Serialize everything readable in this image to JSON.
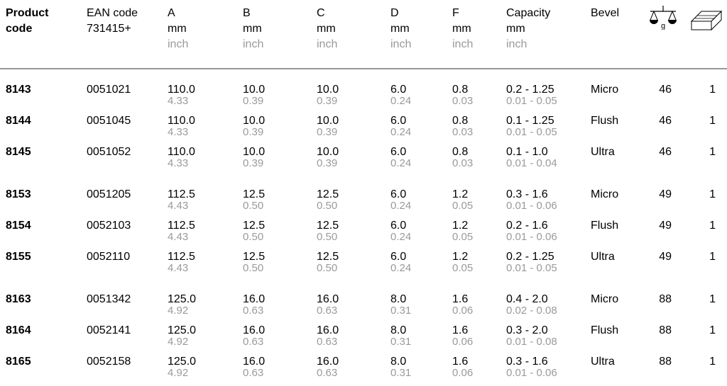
{
  "headers": {
    "product_code": [
      "Product",
      "code"
    ],
    "ean": [
      "EAN code",
      "731415+"
    ],
    "a": [
      "A",
      "mm",
      "inch"
    ],
    "b": [
      "B",
      "mm",
      "inch"
    ],
    "c": [
      "C",
      "mm",
      "inch"
    ],
    "d": [
      "D",
      "mm",
      "inch"
    ],
    "f": [
      "F",
      "mm",
      "inch"
    ],
    "capacity": [
      "Capacity",
      "mm",
      "inch"
    ],
    "bevel": "Bevel",
    "weight_icon_label": "g",
    "weight_icon": "balance-scale-icon",
    "box_icon": "package-box-icon"
  },
  "rows": [
    {
      "code": "8143",
      "ean": "0051021",
      "a": "110.0",
      "a_in": "4.33",
      "b": "10.0",
      "b_in": "0.39",
      "c": "10.0",
      "c_in": "0.39",
      "d": "6.0",
      "d_in": "0.24",
      "f": "0.8",
      "f_in": "0.03",
      "cap": "0.2 - 1.25",
      "cap_in": "0.01 - 0.05",
      "bevel": "Micro",
      "weight": "46",
      "qty": "1"
    },
    {
      "code": "8144",
      "ean": "0051045",
      "a": "110.0",
      "a_in": "4.33",
      "b": "10.0",
      "b_in": "0.39",
      "c": "10.0",
      "c_in": "0.39",
      "d": "6.0",
      "d_in": "0.24",
      "f": "0.8",
      "f_in": "0.03",
      "cap": "0.1 - 1.25",
      "cap_in": "0.01 - 0.05",
      "bevel": "Flush",
      "weight": "46",
      "qty": "1"
    },
    {
      "code": "8145",
      "ean": "0051052",
      "a": "110.0",
      "a_in": "4.33",
      "b": "10.0",
      "b_in": "0.39",
      "c": "10.0",
      "c_in": "0.39",
      "d": "6.0",
      "d_in": "0.24",
      "f": "0.8",
      "f_in": "0.03",
      "cap": "0.1 - 1.0",
      "cap_in": "0.01 - 0.04",
      "bevel": "Ultra",
      "weight": "46",
      "qty": "1"
    },
    {
      "code": "8153",
      "ean": "0051205",
      "a": "112.5",
      "a_in": "4.43",
      "b": "12.5",
      "b_in": "0.50",
      "c": "12.5",
      "c_in": "0.50",
      "d": "6.0",
      "d_in": "0.24",
      "f": "1.2",
      "f_in": "0.05",
      "cap": "0.3 - 1.6",
      "cap_in": "0.01 - 0.06",
      "bevel": "Micro",
      "weight": "49",
      "qty": "1"
    },
    {
      "code": "8154",
      "ean": "0052103",
      "a": "112.5",
      "a_in": "4.43",
      "b": "12.5",
      "b_in": "0.50",
      "c": "12.5",
      "c_in": "0.50",
      "d": "6.0",
      "d_in": "0.24",
      "f": "1.2",
      "f_in": "0.05",
      "cap": "0.2 - 1.6",
      "cap_in": "0.01 - 0.06",
      "bevel": "Flush",
      "weight": "49",
      "qty": "1"
    },
    {
      "code": "8155",
      "ean": "0052110",
      "a": "112.5",
      "a_in": "4.43",
      "b": "12.5",
      "b_in": "0.50",
      "c": "12.5",
      "c_in": "0.50",
      "d": "6.0",
      "d_in": "0.24",
      "f": "1.2",
      "f_in": "0.05",
      "cap": "0.2 - 1.25",
      "cap_in": "0.01 - 0.05",
      "bevel": "Ultra",
      "weight": "49",
      "qty": "1"
    },
    {
      "code": "8163",
      "ean": "0051342",
      "a": "125.0",
      "a_in": "4.92",
      "b": "16.0",
      "b_in": "0.63",
      "c": "16.0",
      "c_in": "0.63",
      "d": "8.0",
      "d_in": "0.31",
      "f": "1.6",
      "f_in": "0.06",
      "cap": "0.4 - 2.0",
      "cap_in": "0.02 - 0.08",
      "bevel": "Micro",
      "weight": "88",
      "qty": "1"
    },
    {
      "code": "8164",
      "ean": "0052141",
      "a": "125.0",
      "a_in": "4.92",
      "b": "16.0",
      "b_in": "0.63",
      "c": "16.0",
      "c_in": "0.63",
      "d": "8.0",
      "d_in": "0.31",
      "f": "1.6",
      "f_in": "0.06",
      "cap": "0.3 - 2.0",
      "cap_in": "0.01 - 0.08",
      "bevel": "Flush",
      "weight": "88",
      "qty": "1"
    },
    {
      "code": "8165",
      "ean": "0052158",
      "a": "125.0",
      "a_in": "4.92",
      "b": "16.0",
      "b_in": "0.63",
      "c": "16.0",
      "c_in": "0.63",
      "d": "8.0",
      "d_in": "0.31",
      "f": "1.6",
      "f_in": "0.06",
      "cap": "0.3 - 1.6",
      "cap_in": "0.01 - 0.06",
      "bevel": "Ultra",
      "weight": "88",
      "qty": "1"
    }
  ],
  "colors": {
    "text": "#000000",
    "secondary": "#9a9a9a",
    "rule": "#999999"
  }
}
